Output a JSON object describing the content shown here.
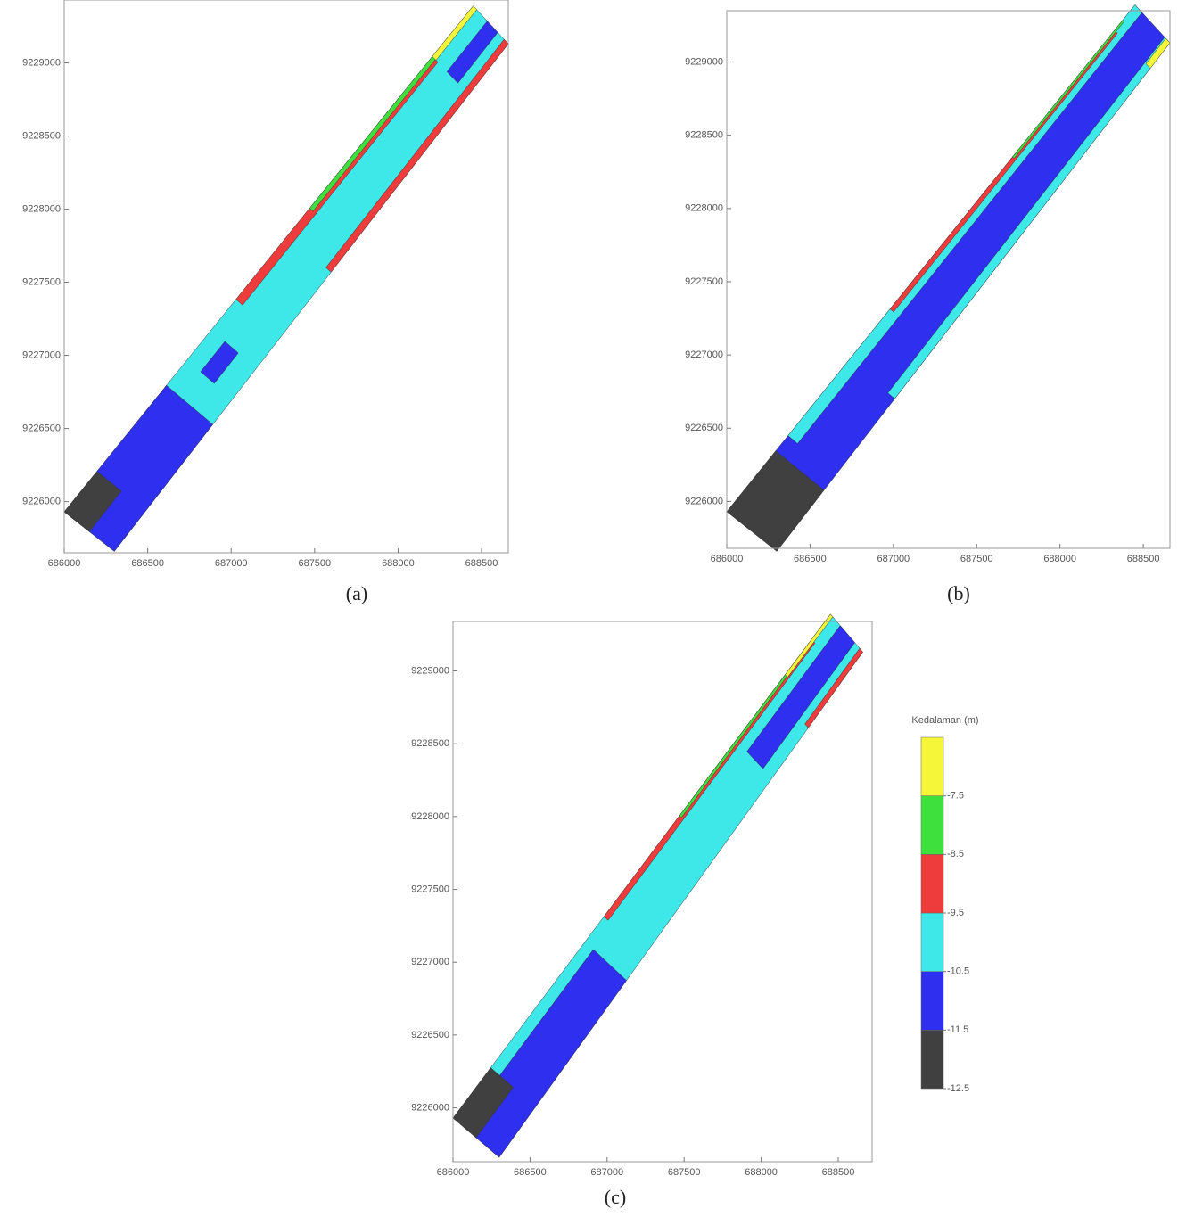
{
  "chart_data": [
    {
      "type": "contour",
      "title": "(a)",
      "xlim": [
        686000,
        688660
      ],
      "ylim": [
        9225650,
        9229430
      ],
      "xticks": [
        686000,
        686500,
        687000,
        687500,
        688000,
        688500
      ],
      "yticks": [
        9226000,
        9226500,
        9227000,
        9227500,
        9228000,
        9228500,
        9229000
      ]
    },
    {
      "type": "contour",
      "title": "(b)",
      "xlim": [
        686000,
        688660
      ],
      "ylim": [
        9225680,
        9229350
      ],
      "xticks": [
        686000,
        686500,
        687000,
        687500,
        688000,
        688500
      ],
      "yticks": [
        9226000,
        9226500,
        9227000,
        9227500,
        9228000,
        9228500,
        9229000
      ]
    },
    {
      "type": "contour",
      "title": "(c)",
      "xlim": [
        686000,
        688720
      ],
      "ylim": [
        9225630,
        9229340
      ],
      "xticks": [
        686000,
        686500,
        687000,
        687500,
        688000,
        688500
      ],
      "yticks": [
        9226000,
        9226500,
        9227000,
        9227500,
        9228000,
        9228500,
        9229000
      ],
      "colorbar": {
        "title": "Kedalaman (m)",
        "clim": [
          -12.5,
          -6.5
        ],
        "ticks": [
          -7.5,
          -8.5,
          -9.5,
          -10.5,
          -11.5,
          -12.5
        ],
        "colors": [
          "#404040",
          "#2f2ff0",
          "#3fe8e8",
          "#ee3b3b",
          "#3de03d",
          "#f5f53a"
        ]
      }
    }
  ]
}
